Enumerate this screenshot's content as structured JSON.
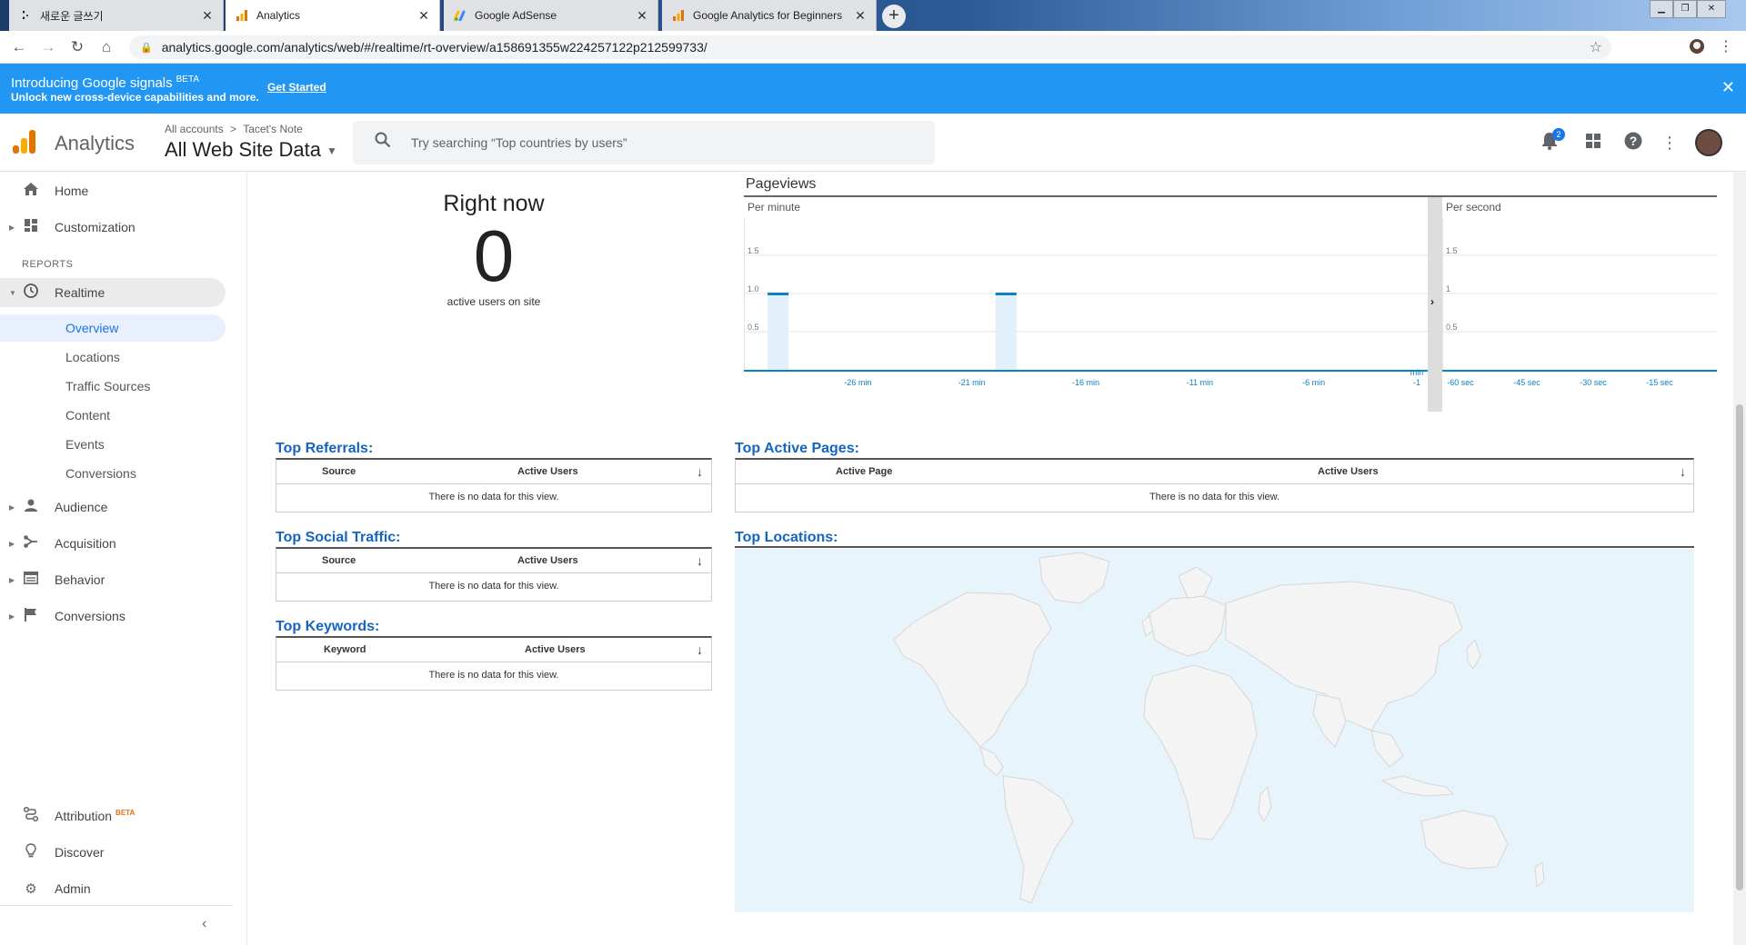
{
  "browser": {
    "tabs": [
      {
        "title": "새로운 글쓰기",
        "icon": "tistory-icon"
      },
      {
        "title": "Analytics",
        "icon": "analytics-icon"
      },
      {
        "title": "Google AdSense",
        "icon": "adsense-icon"
      },
      {
        "title": "Google Analytics for Beginners",
        "icon": "analytics-icon"
      }
    ],
    "url": "analytics.google.com/analytics/web/#/realtime/rt-overview/a158691355w224257122p212599733/"
  },
  "banner": {
    "title": "Introducing Google signals",
    "beta": "BETA",
    "subtitle": "Unlock new cross-device capabilities and more.",
    "link": "Get Started",
    "color": "#2196f3"
  },
  "header": {
    "app_name": "Analytics",
    "breadcrumb_root": "All accounts",
    "breadcrumb_sep": ">",
    "breadcrumb_account": "Tacet's Note",
    "view_name": "All Web Site Data",
    "search_placeholder": "Try searching “Top countries by users”",
    "notification_count": "2"
  },
  "sidebar": {
    "home": "Home",
    "customization": "Customization",
    "reports_header": "REPORTS",
    "realtime": "Realtime",
    "realtime_items": [
      "Overview",
      "Locations",
      "Traffic Sources",
      "Content",
      "Events",
      "Conversions"
    ],
    "audience": "Audience",
    "acquisition": "Acquisition",
    "behavior": "Behavior",
    "conversions": "Conversions",
    "attribution": "Attribution",
    "attribution_beta": "BETA",
    "discover": "Discover",
    "admin": "Admin"
  },
  "right_now": {
    "title": "Right now",
    "value": "0",
    "subtitle": "active users on site"
  },
  "pageviews": {
    "title": "Pageviews",
    "per_minute_label": "Per minute",
    "per_second_label": "Per second"
  },
  "chart_data": [
    {
      "type": "bar",
      "title": "Per minute",
      "y_ticks": [
        "1.5",
        "1.0",
        "0.5"
      ],
      "x_ticks": [
        "-26 min",
        "-21 min",
        "-16 min",
        "-11 min",
        "-6 min"
      ],
      "x_last": [
        "min",
        "-1"
      ],
      "ylim": [
        0,
        2
      ],
      "bars": [
        {
          "offset_min": -29,
          "value": 1
        },
        {
          "offset_min": -19,
          "value": 1
        }
      ],
      "grid": true
    },
    {
      "type": "bar",
      "title": "Per second",
      "y_ticks": [
        "1.5",
        "1",
        "0.5"
      ],
      "x_ticks": [
        "-60 sec",
        "-45 sec",
        "-30 sec",
        "-15 sec"
      ],
      "ylim": [
        0,
        2
      ],
      "bars": [],
      "grid": true
    }
  ],
  "tables": {
    "referrals": {
      "title": "Top Referrals:",
      "col1": "Source",
      "col2": "Active Users",
      "empty": "There is no data for this view."
    },
    "social": {
      "title": "Top Social Traffic:",
      "col1": "Source",
      "col2": "Active Users",
      "empty": "There is no data for this view."
    },
    "keywords": {
      "title": "Top Keywords:",
      "col1": "Keyword",
      "col2": "Active Users",
      "empty": "There is no data for this view."
    },
    "active_pages": {
      "title": "Top Active Pages:",
      "col1": "Active Page",
      "col2": "Active Users",
      "empty": "There is no data for this view."
    },
    "locations": {
      "title": "Top Locations:"
    }
  },
  "colors": {
    "accent": "#1565c0",
    "bar": "#0a80c8",
    "bar_fill": "#e1f0fa",
    "map_water": "#e8f4fc",
    "map_land": "#f4f4f4"
  }
}
